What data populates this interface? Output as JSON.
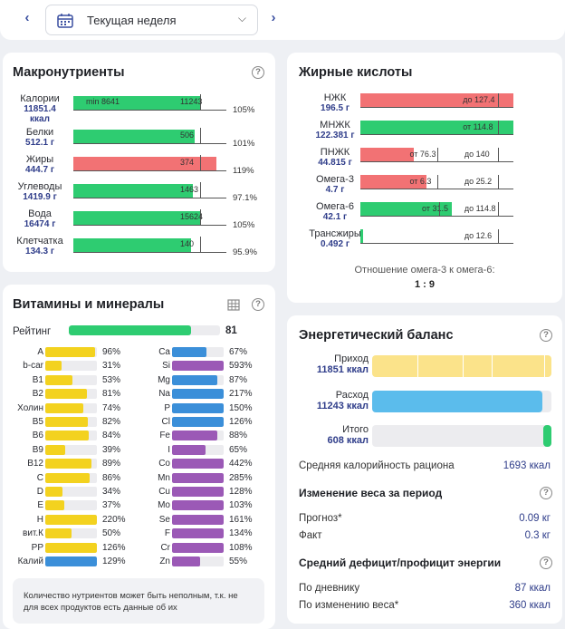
{
  "header": {
    "week_label": "Текущая неделя"
  },
  "macro": {
    "title": "Макронутриенты",
    "rows": [
      {
        "name": "Калории",
        "value": "11851.4",
        "unit": "ккал",
        "bar_label": "11243",
        "min_label": "min 8641",
        "pct": "105%",
        "fill": 1.0,
        "color": "#2ecc71"
      },
      {
        "name": "Белки",
        "value": "512.1 г",
        "bar_label": "506",
        "pct": "101%",
        "fill": 0.96,
        "color": "#2ecc71"
      },
      {
        "name": "Жиры",
        "value": "444.7 г",
        "bar_label": "374",
        "pct": "119%",
        "fill": 1.13,
        "color": "#f27274"
      },
      {
        "name": "Углеводы",
        "value": "1419.9 г",
        "bar_label": "1463",
        "pct": "97.1%",
        "fill": 0.94,
        "color": "#2ecc71"
      },
      {
        "name": "Вода",
        "value": "16474 г",
        "bar_label": "15624",
        "pct": "105%",
        "fill": 1.0,
        "color": "#2ecc71"
      },
      {
        "name": "Клетчатка",
        "value": "134.3 г",
        "bar_label": "140",
        "pct": "95.9%",
        "fill": 0.93,
        "color": "#2ecc71"
      }
    ]
  },
  "fats": {
    "title": "Жирные кислоты",
    "rows": [
      {
        "name": "НЖК",
        "value": "196.5 г",
        "l1": "",
        "l2": "до 127.4",
        "color": "#f27274",
        "w": 1.0
      },
      {
        "name": "МНЖК",
        "value": "122.381 г",
        "l1": "",
        "l2": "от 114.8",
        "color": "#2ecc71",
        "w": 1.0
      },
      {
        "name": "ПНЖК",
        "value": "44.815 г",
        "l1": "от 76.3",
        "l2": "до 140",
        "color": "#f27274",
        "w": 0.35
      },
      {
        "name": "Омега-3",
        "value": "4.7 г",
        "l1": "от 6.3",
        "l2": "до 25.2",
        "color": "#f27274",
        "w": 0.43
      },
      {
        "name": "Омега-6",
        "value": "42.1 г",
        "l1": "от 31.5",
        "l2": "до 114.8",
        "color": "#2ecc71",
        "w": 0.6
      },
      {
        "name": "Трансжиры",
        "value": "0.492 г",
        "l1": "",
        "l2": "до 12.6",
        "color": "#2ecc71",
        "w": 0.02
      }
    ],
    "ratio_label": "Отношение омега-3 к омега-6:",
    "ratio_value": "1 : 9"
  },
  "vitamins": {
    "title": "Витамины и минералы",
    "rating_label": "Рейтинг",
    "rating_value": "81",
    "rating": 0.81,
    "left": [
      {
        "n": "A",
        "p": "96%",
        "f": 0.96
      },
      {
        "n": "b-car",
        "p": "31%",
        "f": 0.31
      },
      {
        "n": "B1",
        "p": "53%",
        "f": 0.53
      },
      {
        "n": "B2",
        "p": "81%",
        "f": 0.81
      },
      {
        "n": "Холин",
        "p": "74%",
        "f": 0.74
      },
      {
        "n": "B5",
        "p": "82%",
        "f": 0.82
      },
      {
        "n": "B6",
        "p": "84%",
        "f": 0.84
      },
      {
        "n": "B9",
        "p": "39%",
        "f": 0.39
      },
      {
        "n": "B12",
        "p": "89%",
        "f": 0.89
      },
      {
        "n": "C",
        "p": "86%",
        "f": 0.86
      },
      {
        "n": "D",
        "p": "34%",
        "f": 0.34
      },
      {
        "n": "E",
        "p": "37%",
        "f": 0.37
      },
      {
        "n": "H",
        "p": "220%",
        "f": 1.0
      },
      {
        "n": "вит.К",
        "p": "50%",
        "f": 0.5
      },
      {
        "n": "PP",
        "p": "126%",
        "f": 1.0
      },
      {
        "n": "Калий",
        "p": "129%",
        "f": 1.0,
        "mineral": true
      }
    ],
    "right": [
      {
        "n": "Ca",
        "p": "67%",
        "f": 0.67,
        "c": "#3b8fd9"
      },
      {
        "n": "Si",
        "p": "593%",
        "f": 1.0,
        "c": "#9b59b6"
      },
      {
        "n": "Mg",
        "p": "87%",
        "f": 0.87,
        "c": "#3b8fd9"
      },
      {
        "n": "Na",
        "p": "217%",
        "f": 1.0,
        "c": "#3b8fd9"
      },
      {
        "n": "P",
        "p": "150%",
        "f": 1.0,
        "c": "#3b8fd9"
      },
      {
        "n": "Cl",
        "p": "126%",
        "f": 1.0,
        "c": "#3b8fd9"
      },
      {
        "n": "Fe",
        "p": "88%",
        "f": 0.88,
        "c": "#9b59b6"
      },
      {
        "n": "I",
        "p": "65%",
        "f": 0.65,
        "c": "#9b59b6"
      },
      {
        "n": "Co",
        "p": "442%",
        "f": 1.0,
        "c": "#9b59b6"
      },
      {
        "n": "Mn",
        "p": "285%",
        "f": 1.0,
        "c": "#9b59b6"
      },
      {
        "n": "Cu",
        "p": "128%",
        "f": 1.0,
        "c": "#9b59b6"
      },
      {
        "n": "Mo",
        "p": "103%",
        "f": 1.0,
        "c": "#9b59b6"
      },
      {
        "n": "Se",
        "p": "161%",
        "f": 1.0,
        "c": "#9b59b6"
      },
      {
        "n": "F",
        "p": "134%",
        "f": 1.0,
        "c": "#9b59b6"
      },
      {
        "n": "Cr",
        "p": "108%",
        "f": 1.0,
        "c": "#9b59b6"
      },
      {
        "n": "Zn",
        "p": "55%",
        "f": 0.55,
        "c": "#9b59b6"
      }
    ],
    "note": "Количество нутриентов может быть неполным, т.к. не для всех продуктов есть данные об их"
  },
  "energy": {
    "title": "Энергетический баланс",
    "income_label": "Приход",
    "income_value": "11851 ккал",
    "expense_label": "Расход",
    "expense_value": "11243 ккал",
    "total_label": "Итого",
    "total_value": "608 ккал",
    "income_fill": 1.0,
    "expense_fill": 0.95,
    "avg_label": "Средняя калорийность рациона",
    "avg_value": "1693 ккал",
    "weight_title": "Изменение веса за период",
    "forecast_label": "Прогноз*",
    "forecast_value": "0.09 кг",
    "fact_label": "Факт",
    "fact_value": "0.3 кг",
    "deficit_title": "Средний дефицит/профицит энергии",
    "diary_label": "По дневнику",
    "diary_value": "87 ккал",
    "weightchg_label": "По изменению веса*",
    "weightchg_value": "360 ккал"
  },
  "colors": {
    "green": "#2ecc71",
    "red": "#f27274",
    "yellow": "#f3d21f",
    "blue": "#3b8fd9",
    "purple": "#9b59b6",
    "light_blue": "#5bbcec",
    "pale_yellow": "#fbe38a"
  }
}
